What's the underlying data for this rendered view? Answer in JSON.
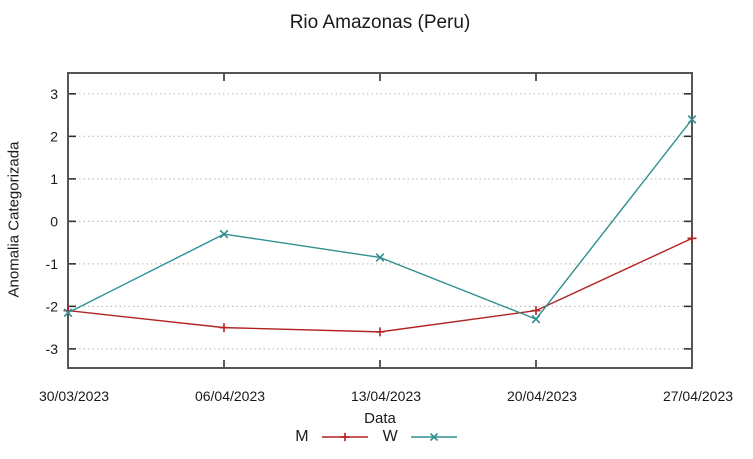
{
  "chart_data": {
    "type": "line",
    "title": "Rio Amazonas (Peru)",
    "xlabel": "Data",
    "ylabel": "Anomalia Categorizada",
    "categories": [
      "30/03/2023",
      "06/04/2023",
      "13/04/2023",
      "20/04/2023",
      "27/04/2023"
    ],
    "series": [
      {
        "name": "M",
        "color": "#b22222",
        "marker": "plus",
        "values": [
          -2.1,
          -2.5,
          -2.6,
          -2.1,
          -0.4
        ]
      },
      {
        "name": "W",
        "color": "#338f8f",
        "marker": "cross",
        "values": [
          -2.15,
          -0.3,
          -0.85,
          -2.3,
          2.4
        ]
      }
    ],
    "yticks": [
      3,
      2,
      1,
      0,
      -1,
      -2,
      -3
    ],
    "ylim": [
      -3.45,
      3.49
    ],
    "grid": "horizontal-dotted",
    "legend_position": "bottom",
    "colors": {
      "grid": "#c0c0c0",
      "border": "#555555",
      "tick": "#333333",
      "text": "#1a1a1a"
    }
  }
}
